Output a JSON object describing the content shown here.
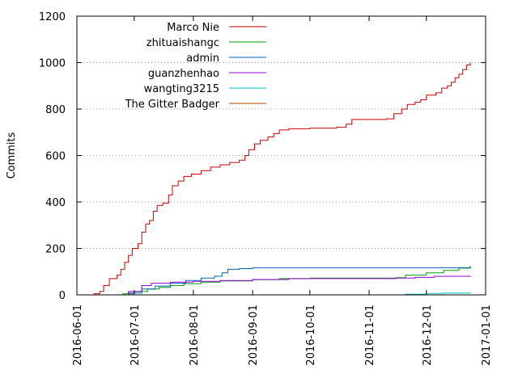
{
  "chart_data": {
    "type": "line",
    "title": "",
    "xlabel": "",
    "ylabel": "Commits",
    "xlim": [
      "2016-06-01",
      "2017-01-01"
    ],
    "ylim": [
      0,
      1200
    ],
    "x_ticks": [
      "2016-06-01",
      "2016-07-01",
      "2016-08-01",
      "2016-09-01",
      "2016-10-01",
      "2016-11-01",
      "2016-12-01",
      "2017-01-01"
    ],
    "y_ticks": [
      0,
      200,
      400,
      600,
      800,
      1000,
      1200
    ],
    "grid": true,
    "legend_position": "top-left",
    "colors": {
      "Marco Nie": "#cc0000",
      "zhituaishangc": "#00a000",
      "admin": "#0060c0",
      "guanzhenhao": "#9400d3",
      "wangting3215": "#00c0c0",
      "The Gitter Badger": "#c04000"
    },
    "series": [
      {
        "name": "Marco Nie",
        "points": [
          [
            "2016-06-07",
            0
          ],
          [
            "2016-06-10",
            5
          ],
          [
            "2016-06-13",
            15
          ],
          [
            "2016-06-15",
            40
          ],
          [
            "2016-06-18",
            70
          ],
          [
            "2016-06-22",
            85
          ],
          [
            "2016-06-24",
            110
          ],
          [
            "2016-06-26",
            140
          ],
          [
            "2016-06-28",
            170
          ],
          [
            "2016-06-30",
            200
          ],
          [
            "2016-07-03",
            220
          ],
          [
            "2016-07-05",
            270
          ],
          [
            "2016-07-07",
            305
          ],
          [
            "2016-07-09",
            320
          ],
          [
            "2016-07-11",
            360
          ],
          [
            "2016-07-13",
            385
          ],
          [
            "2016-07-16",
            395
          ],
          [
            "2016-07-19",
            430
          ],
          [
            "2016-07-21",
            470
          ],
          [
            "2016-07-24",
            490
          ],
          [
            "2016-07-27",
            510
          ],
          [
            "2016-07-31",
            520
          ],
          [
            "2016-08-05",
            535
          ],
          [
            "2016-08-10",
            550
          ],
          [
            "2016-08-15",
            560
          ],
          [
            "2016-08-20",
            570
          ],
          [
            "2016-08-25",
            580
          ],
          [
            "2016-08-28",
            600
          ],
          [
            "2016-08-30",
            625
          ],
          [
            "2016-09-02",
            650
          ],
          [
            "2016-09-05",
            665
          ],
          [
            "2016-09-09",
            680
          ],
          [
            "2016-09-12",
            695
          ],
          [
            "2016-09-15",
            710
          ],
          [
            "2016-09-20",
            715
          ],
          [
            "2016-10-01",
            718
          ],
          [
            "2016-10-15",
            722
          ],
          [
            "2016-10-20",
            735
          ],
          [
            "2016-10-23",
            755
          ],
          [
            "2016-11-10",
            758
          ],
          [
            "2016-11-14",
            780
          ],
          [
            "2016-11-18",
            800
          ],
          [
            "2016-11-21",
            820
          ],
          [
            "2016-11-25",
            830
          ],
          [
            "2016-11-28",
            840
          ],
          [
            "2016-12-01",
            860
          ],
          [
            "2016-12-06",
            870
          ],
          [
            "2016-12-09",
            890
          ],
          [
            "2016-12-12",
            900
          ],
          [
            "2016-12-14",
            915
          ],
          [
            "2016-12-16",
            935
          ],
          [
            "2016-12-18",
            950
          ],
          [
            "2016-12-20",
            970
          ],
          [
            "2016-12-22",
            990
          ],
          [
            "2016-12-24",
            1000
          ]
        ]
      },
      {
        "name": "zhituaishangc",
        "points": [
          [
            "2016-06-12",
            0
          ],
          [
            "2016-06-25",
            5
          ],
          [
            "2016-07-01",
            15
          ],
          [
            "2016-07-08",
            25
          ],
          [
            "2016-07-14",
            32
          ],
          [
            "2016-07-20",
            40
          ],
          [
            "2016-07-27",
            48
          ],
          [
            "2016-08-05",
            55
          ],
          [
            "2016-08-15",
            60
          ],
          [
            "2016-09-01",
            65
          ],
          [
            "2016-09-15",
            70
          ],
          [
            "2016-10-01",
            72
          ],
          [
            "2016-11-15",
            74
          ],
          [
            "2016-11-20",
            85
          ],
          [
            "2016-12-01",
            95
          ],
          [
            "2016-12-10",
            105
          ],
          [
            "2016-12-18",
            115
          ],
          [
            "2016-12-24",
            125
          ]
        ]
      },
      {
        "name": "admin",
        "points": [
          [
            "2016-06-15",
            0
          ],
          [
            "2016-06-28",
            8
          ],
          [
            "2016-07-05",
            25
          ],
          [
            "2016-07-12",
            38
          ],
          [
            "2016-07-20",
            50
          ],
          [
            "2016-07-28",
            62
          ],
          [
            "2016-08-05",
            72
          ],
          [
            "2016-08-12",
            80
          ],
          [
            "2016-08-16",
            95
          ],
          [
            "2016-08-19",
            110
          ],
          [
            "2016-08-25",
            113
          ],
          [
            "2016-09-01",
            117
          ],
          [
            "2016-12-24",
            120
          ]
        ]
      },
      {
        "name": "guanzhenhao",
        "points": [
          [
            "2016-06-20",
            0
          ],
          [
            "2016-06-28",
            15
          ],
          [
            "2016-07-05",
            40
          ],
          [
            "2016-07-10",
            50
          ],
          [
            "2016-07-20",
            55
          ],
          [
            "2016-08-01",
            58
          ],
          [
            "2016-08-15",
            62
          ],
          [
            "2016-09-01",
            66
          ],
          [
            "2016-09-20",
            70
          ],
          [
            "2016-11-15",
            72
          ],
          [
            "2016-11-25",
            75
          ],
          [
            "2016-12-05",
            80
          ],
          [
            "2016-12-24",
            82
          ]
        ]
      },
      {
        "name": "wangting3215",
        "points": [
          [
            "2016-11-15",
            0
          ],
          [
            "2016-11-20",
            3
          ],
          [
            "2016-12-01",
            6
          ],
          [
            "2016-12-10",
            8
          ],
          [
            "2016-12-24",
            9
          ]
        ]
      },
      {
        "name": "The Gitter Badger",
        "points": [
          [
            "2016-06-07",
            0
          ],
          [
            "2016-12-24",
            1
          ]
        ]
      }
    ]
  }
}
